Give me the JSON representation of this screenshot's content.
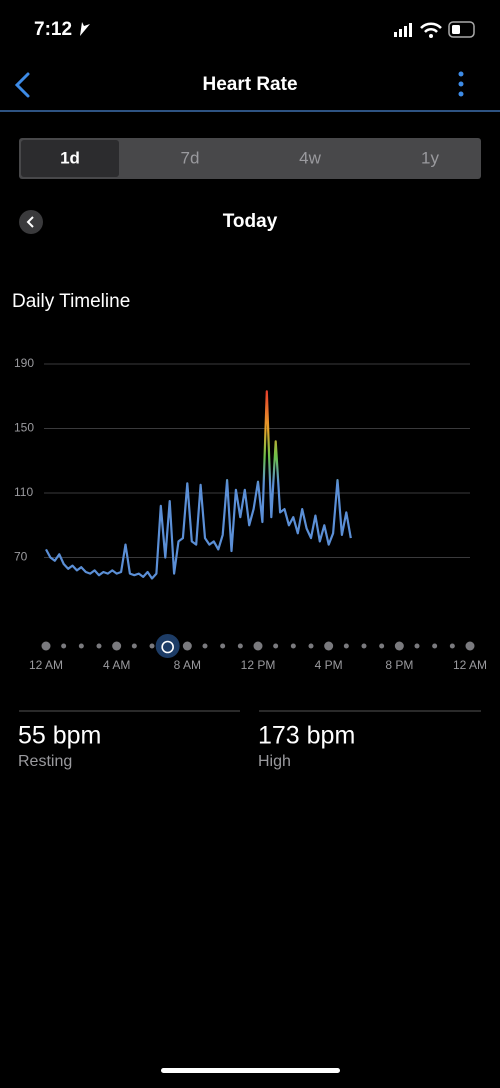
{
  "status": {
    "time": "7:12"
  },
  "header": {
    "title": "Heart Rate"
  },
  "tabs": [
    "1d",
    "7d",
    "4w",
    "1y"
  ],
  "date": "Today",
  "section_title": "Daily Timeline",
  "chart_data": {
    "type": "line",
    "color": "#5b8fd6",
    "x": [
      0,
      0.25,
      0.5,
      0.75,
      1,
      1.25,
      1.5,
      1.75,
      2,
      2.25,
      2.5,
      2.75,
      3,
      3.25,
      3.5,
      3.75,
      4,
      4.25,
      4.5,
      4.75,
      5,
      5.25,
      5.5,
      5.75,
      6,
      6.25,
      6.5,
      6.75,
      7,
      7.25,
      7.5,
      7.75,
      8,
      8.25,
      8.5,
      8.75,
      9,
      9.25,
      9.5,
      9.75,
      10,
      10.25,
      10.5,
      10.75,
      11,
      11.25,
      11.5,
      11.75,
      12,
      12.25,
      12.5,
      12.75,
      13,
      13.25,
      13.5,
      13.75,
      14,
      14.25,
      14.5,
      14.75,
      15,
      15.25,
      15.5,
      15.75,
      16,
      16.25,
      16.5,
      16.75,
      17,
      17.25
    ],
    "values": [
      75,
      70,
      68,
      72,
      66,
      63,
      65,
      62,
      64,
      61,
      60,
      62,
      59,
      61,
      60,
      62,
      60,
      61,
      78,
      60,
      59,
      60,
      58,
      61,
      57,
      60,
      102,
      70,
      105,
      60,
      80,
      82,
      116,
      80,
      78,
      115,
      82,
      78,
      80,
      75,
      84,
      118,
      74,
      112,
      95,
      112,
      90,
      100,
      117,
      92,
      173,
      95,
      142,
      98,
      100,
      90,
      95,
      85,
      100,
      88,
      82,
      96,
      80,
      90,
      78,
      85,
      118,
      84,
      98,
      82
    ],
    "xlim": [
      0,
      24
    ],
    "xticks": [
      {
        "value": 0,
        "label": "12 AM"
      },
      {
        "value": 4,
        "label": "4 AM"
      },
      {
        "value": 8,
        "label": "8 AM"
      },
      {
        "value": 12,
        "label": "12 PM"
      },
      {
        "value": 16,
        "label": "4 PM"
      },
      {
        "value": 20,
        "label": "8 PM"
      },
      {
        "value": 24,
        "label": "12 AM"
      }
    ],
    "ylim": [
      30,
      190
    ],
    "yticks": [
      190,
      150,
      110,
      70
    ],
    "grid": true
  },
  "stats": [
    {
      "value": "55 bpm",
      "label": "Resting"
    },
    {
      "value": "173 bpm",
      "label": "High"
    }
  ]
}
